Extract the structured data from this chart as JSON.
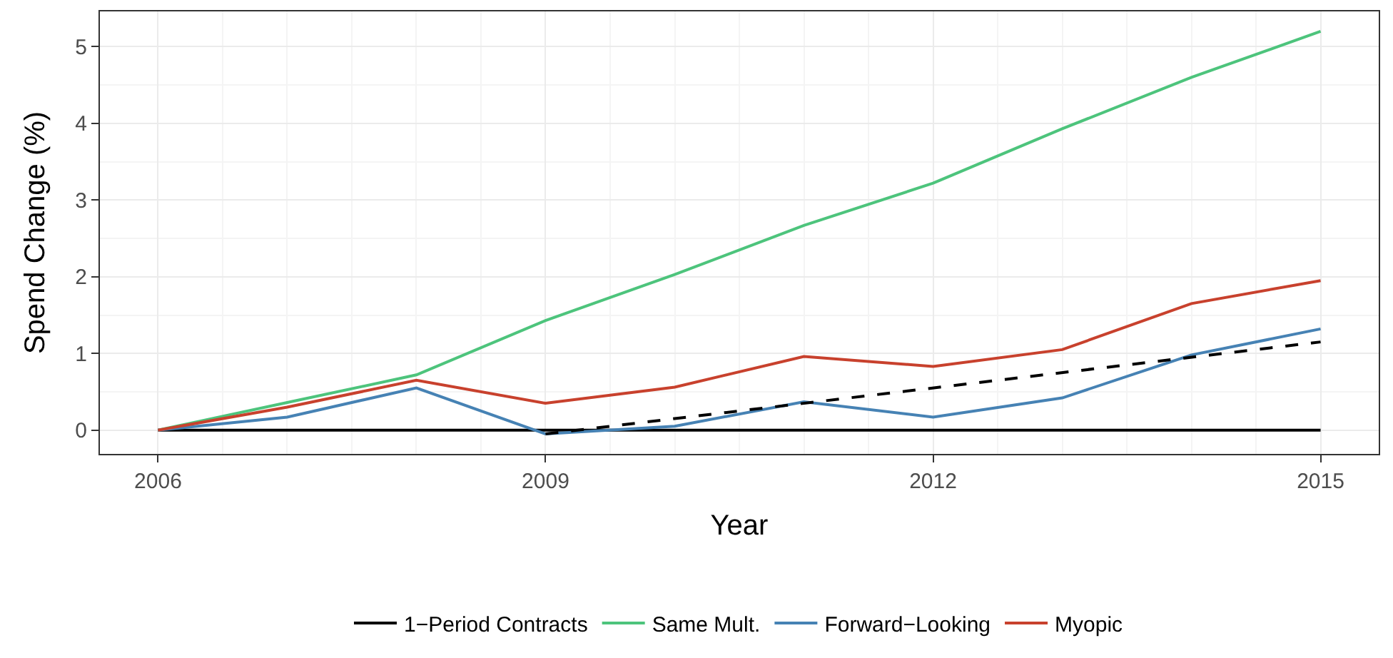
{
  "chart_data": {
    "type": "line",
    "xlabel": "Year",
    "ylabel": "Spend Change (%)",
    "x": [
      2006,
      2007,
      2008,
      2009,
      2010,
      2011,
      2012,
      2013,
      2014,
      2015
    ],
    "series": [
      {
        "name": "1−Period Contracts",
        "color": "#000000",
        "values": [
          0,
          0,
          0,
          0,
          0,
          0,
          0,
          0,
          0,
          0
        ]
      },
      {
        "name": "Same Mult.",
        "color": "#4dc47c",
        "values": [
          0,
          0.36,
          0.72,
          1.43,
          2.03,
          2.67,
          3.22,
          3.93,
          4.6,
          5.2
        ]
      },
      {
        "name": "Forward−Looking",
        "color": "#4682b4",
        "values": [
          0,
          0.17,
          0.55,
          -0.05,
          0.05,
          0.37,
          0.17,
          0.42,
          0.98,
          1.32
        ]
      },
      {
        "name": "Myopic",
        "color": "#c8412d",
        "values": [
          0,
          0.3,
          0.65,
          0.35,
          0.56,
          0.96,
          0.83,
          1.05,
          1.65,
          1.95
        ]
      },
      {
        "color": "#000000",
        "line_style": "dashed",
        "x": [
          2009,
          2015
        ],
        "values": [
          -0.05,
          1.15
        ]
      }
    ],
    "xlim": [
      2005.55,
      2015.45
    ],
    "xticks": [
      2006,
      2009,
      2012,
      2015
    ],
    "ylim": [
      -0.31,
      5.46
    ],
    "yticks": [
      0,
      1,
      2,
      3,
      4,
      5
    ],
    "grid": true,
    "legend": "bottom",
    "line_style": "solid",
    "marker": "none"
  }
}
